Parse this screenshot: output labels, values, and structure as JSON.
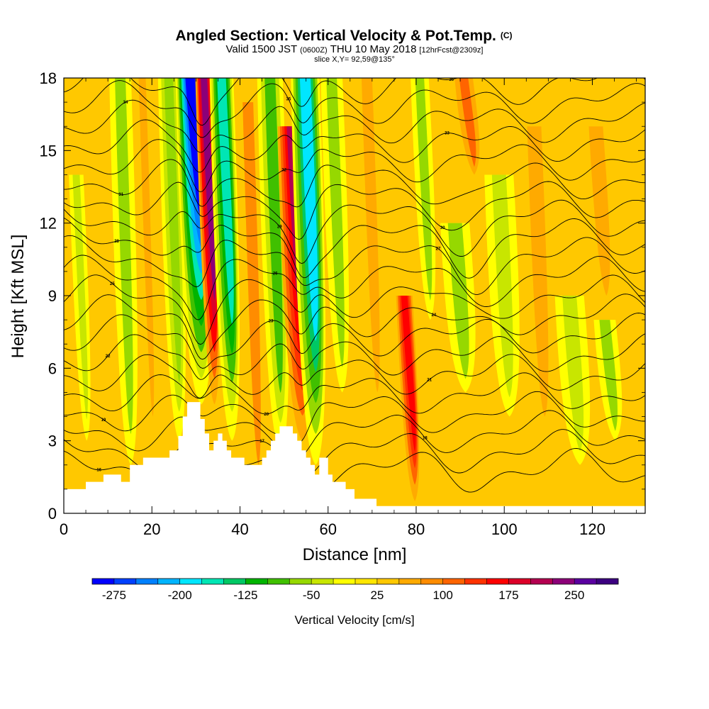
{
  "header": {
    "title": "Angled Section: Vertical Velocity & Pot.Temp.",
    "title_unit": "(C)",
    "subtitle_main": "Valid 1500 JST",
    "subtitle_zulu": "(0600Z)",
    "subtitle_date": "THU 10 May 2018",
    "subtitle_fcst": "[12hrFcst@2309z]",
    "slice": "slice X,Y= 92,59@135°"
  },
  "chart_data": {
    "type": "heatmap",
    "xlabel": "Distance [nm]",
    "ylabel": "Height [Kft MSL]",
    "xlim": [
      0,
      132
    ],
    "ylim": [
      0,
      18
    ],
    "x_ticks": [
      "0",
      "20",
      "40",
      "60",
      "80",
      "100",
      "120"
    ],
    "y_ticks": [
      "0",
      "3",
      "6",
      "9",
      "12",
      "15",
      "18"
    ],
    "colorbar": {
      "label": "Vertical Velocity [cm/s]",
      "min": -300,
      "max": 300,
      "step": 25,
      "tick_labels": [
        "-275",
        "-200",
        "-125",
        "-50",
        "25",
        "100",
        "175",
        "250"
      ],
      "tick_values": [
        -275,
        -200,
        -125,
        -50,
        25,
        100,
        175,
        250
      ],
      "colors": [
        "#0000ff",
        "#0040ff",
        "#0080ff",
        "#00b4ff",
        "#00e6ff",
        "#00e6b4",
        "#00c864",
        "#00b400",
        "#40c000",
        "#96d800",
        "#c8e600",
        "#ffff00",
        "#ffe600",
        "#ffc800",
        "#ffaa00",
        "#ff8c00",
        "#ff6400",
        "#ff3200",
        "#ff0000",
        "#dc0028",
        "#b40050",
        "#8c0078",
        "#5a00a0",
        "#3c0080"
      ]
    },
    "background_velocity_cms": 30,
    "velocity_bands": [
      {
        "x": 4,
        "top": 14,
        "bottom": 3,
        "width": 2,
        "value": -40
      },
      {
        "x": 14,
        "top": 18,
        "bottom": 2,
        "width": 3,
        "value": -60
      },
      {
        "x": 19,
        "top": 18,
        "bottom": 4,
        "width": 2,
        "value": 70
      },
      {
        "x": 25,
        "top": 18,
        "bottom": 3,
        "width": 2.5,
        "value": -75
      },
      {
        "x": 30,
        "top": 18,
        "bottom": 4.5,
        "width": 3,
        "value": -280
      },
      {
        "x": 33,
        "top": 18,
        "bottom": 4.5,
        "width": 1.8,
        "value": 230
      },
      {
        "x": 37,
        "top": 18,
        "bottom": 3,
        "width": 2.5,
        "value": -160
      },
      {
        "x": 43,
        "top": 17,
        "bottom": 2,
        "width": 3,
        "value": 75
      },
      {
        "x": 48,
        "top": 18,
        "bottom": 2.5,
        "width": 3,
        "value": -80
      },
      {
        "x": 53,
        "top": 16,
        "bottom": 3,
        "width": 3,
        "value": 210
      },
      {
        "x": 56,
        "top": 18,
        "bottom": 2,
        "width": 3,
        "value": -180
      },
      {
        "x": 62,
        "top": 18,
        "bottom": 5,
        "width": 3,
        "value": -60
      },
      {
        "x": 70,
        "top": 18,
        "bottom": 5,
        "width": 3,
        "value": 70
      },
      {
        "x": 78.5,
        "top": 9,
        "bottom": 0.5,
        "width": 1.8,
        "value": 170
      },
      {
        "x": 82,
        "top": 18,
        "bottom": 8,
        "width": 2.5,
        "value": -60
      },
      {
        "x": 90,
        "top": 12,
        "bottom": 5,
        "width": 4,
        "value": -60
      },
      {
        "x": 92,
        "top": 18,
        "bottom": 14,
        "width": 2.5,
        "value": 110
      },
      {
        "x": 100,
        "top": 14,
        "bottom": 4,
        "width": 4,
        "value": -45
      },
      {
        "x": 108,
        "top": 16,
        "bottom": 4,
        "width": 4,
        "value": 60
      },
      {
        "x": 116,
        "top": 9,
        "bottom": 2,
        "width": 4,
        "value": -40
      },
      {
        "x": 124,
        "top": 8,
        "bottom": 3,
        "width": 3,
        "value": -55
      },
      {
        "x": 122,
        "top": 16,
        "bottom": 9,
        "width": 4,
        "value": 70
      }
    ],
    "terrain": [
      {
        "x": 0,
        "h": 1.0
      },
      {
        "x": 5,
        "h": 1.0
      },
      {
        "x": 5,
        "h": 1.3
      },
      {
        "x": 9,
        "h": 1.3
      },
      {
        "x": 9,
        "h": 1.6
      },
      {
        "x": 13,
        "h": 1.6
      },
      {
        "x": 13,
        "h": 1.3
      },
      {
        "x": 15,
        "h": 1.3
      },
      {
        "x": 15,
        "h": 2.0
      },
      {
        "x": 18,
        "h": 2.0
      },
      {
        "x": 18,
        "h": 2.3
      },
      {
        "x": 24,
        "h": 2.3
      },
      {
        "x": 24,
        "h": 2.6
      },
      {
        "x": 26,
        "h": 2.6
      },
      {
        "x": 26,
        "h": 3.2
      },
      {
        "x": 27,
        "h": 3.2
      },
      {
        "x": 27,
        "h": 4.0
      },
      {
        "x": 28,
        "h": 4.0
      },
      {
        "x": 28,
        "h": 4.6
      },
      {
        "x": 31,
        "h": 4.6
      },
      {
        "x": 31,
        "h": 3.9
      },
      {
        "x": 32,
        "h": 3.9
      },
      {
        "x": 32,
        "h": 3.3
      },
      {
        "x": 33,
        "h": 3.3
      },
      {
        "x": 33,
        "h": 2.6
      },
      {
        "x": 34,
        "h": 2.6
      },
      {
        "x": 34,
        "h": 3.0
      },
      {
        "x": 35,
        "h": 3.0
      },
      {
        "x": 35,
        "h": 3.3
      },
      {
        "x": 36,
        "h": 3.3
      },
      {
        "x": 36,
        "h": 3.0
      },
      {
        "x": 37,
        "h": 3.0
      },
      {
        "x": 37,
        "h": 2.6
      },
      {
        "x": 38,
        "h": 2.6
      },
      {
        "x": 38,
        "h": 2.3
      },
      {
        "x": 41,
        "h": 2.3
      },
      {
        "x": 41,
        "h": 2.0
      },
      {
        "x": 45,
        "h": 2.0
      },
      {
        "x": 45,
        "h": 2.3
      },
      {
        "x": 46,
        "h": 2.3
      },
      {
        "x": 46,
        "h": 2.6
      },
      {
        "x": 47,
        "h": 2.6
      },
      {
        "x": 47,
        "h": 3.0
      },
      {
        "x": 48,
        "h": 3.0
      },
      {
        "x": 48,
        "h": 3.3
      },
      {
        "x": 49,
        "h": 3.3
      },
      {
        "x": 49,
        "h": 3.6
      },
      {
        "x": 52,
        "h": 3.6
      },
      {
        "x": 52,
        "h": 3.3
      },
      {
        "x": 53,
        "h": 3.3
      },
      {
        "x": 53,
        "h": 3.0
      },
      {
        "x": 54,
        "h": 3.0
      },
      {
        "x": 54,
        "h": 2.6
      },
      {
        "x": 55,
        "h": 2.6
      },
      {
        "x": 55,
        "h": 2.3
      },
      {
        "x": 56,
        "h": 2.3
      },
      {
        "x": 56,
        "h": 2.0
      },
      {
        "x": 57,
        "h": 2.0
      },
      {
        "x": 57,
        "h": 1.6
      },
      {
        "x": 58,
        "h": 1.6
      },
      {
        "x": 58,
        "h": 2.3
      },
      {
        "x": 60,
        "h": 2.3
      },
      {
        "x": 60,
        "h": 1.6
      },
      {
        "x": 61,
        "h": 1.6
      },
      {
        "x": 61,
        "h": 1.3
      },
      {
        "x": 64,
        "h": 1.3
      },
      {
        "x": 64,
        "h": 1.0
      },
      {
        "x": 66,
        "h": 1.0
      },
      {
        "x": 66,
        "h": 0.6
      },
      {
        "x": 71,
        "h": 0.6
      },
      {
        "x": 71,
        "h": 0.3
      },
      {
        "x": 132,
        "h": 0.3
      }
    ],
    "isentropes_C": [
      {
        "level": 16,
        "base": 1.8
      },
      {
        "level": 17,
        "base": 2.6
      },
      {
        "level": 18,
        "base": 3.4
      },
      {
        "level": 19,
        "base": 4.2
      },
      {
        "level": 20,
        "base": 5.0
      },
      {
        "level": 21,
        "base": 5.8
      },
      {
        "level": 22,
        "base": 6.6
      },
      {
        "level": 23,
        "base": 7.4
      },
      {
        "level": 24,
        "base": 8.2
      },
      {
        "level": 25,
        "base": 9.0
      },
      {
        "level": 26,
        "base": 9.8
      },
      {
        "level": 27,
        "base": 10.6
      },
      {
        "level": 28,
        "base": 11.4
      },
      {
        "level": 29,
        "base": 12.2
      },
      {
        "level": 30,
        "base": 13.0
      },
      {
        "level": 31,
        "base": 13.8
      },
      {
        "level": 32,
        "base": 14.6
      },
      {
        "level": 33,
        "base": 15.4
      },
      {
        "level": 34,
        "base": 16.2
      },
      {
        "level": 35,
        "base": 17.0
      },
      {
        "level": 36,
        "base": 17.8
      }
    ]
  }
}
